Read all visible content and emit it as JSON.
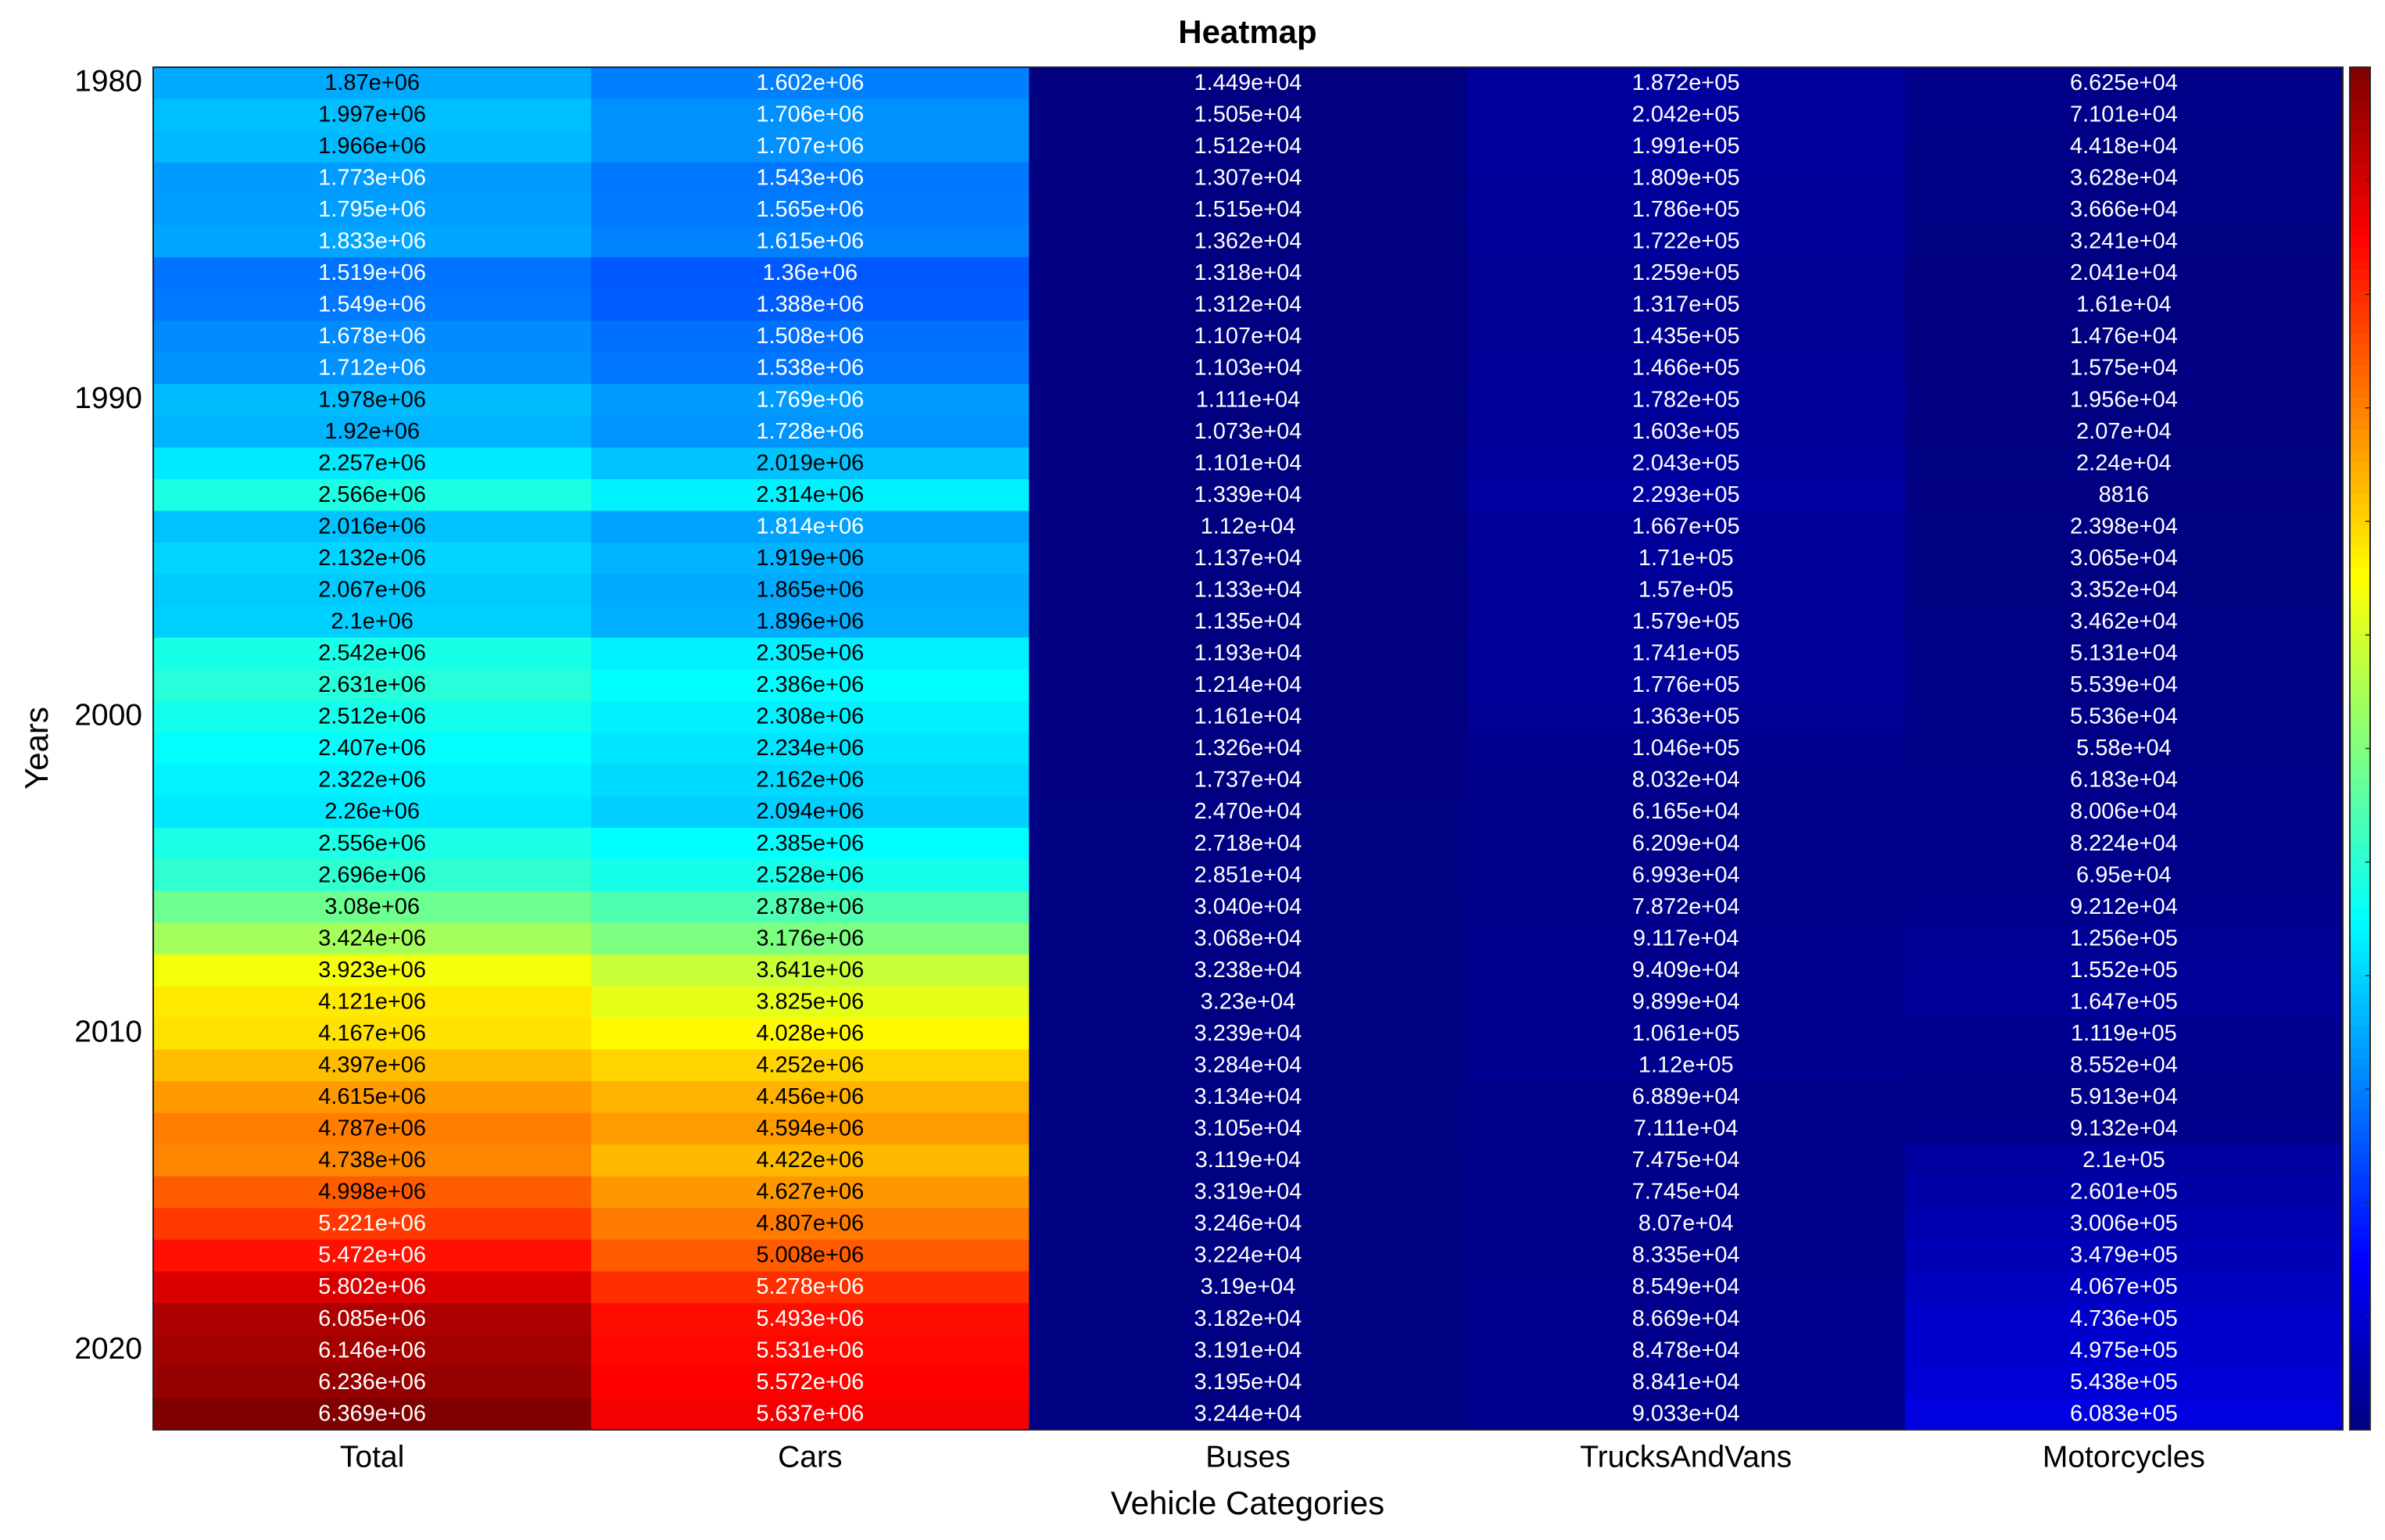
{
  "chart_data": {
    "type": "heatmap",
    "title": "Heatmap",
    "xlabel": "Vehicle Categories",
    "ylabel": "Years",
    "colormap": "jet",
    "x_categories": [
      "Total",
      "Cars",
      "Buses",
      "TrucksAndVans",
      "Motorcycles"
    ],
    "y_categories": [
      1980,
      null,
      null,
      null,
      null,
      null,
      null,
      null,
      null,
      null,
      1990,
      null,
      null,
      null,
      null,
      null,
      null,
      null,
      null,
      null,
      2000,
      null,
      null,
      null,
      null,
      null,
      null,
      null,
      null,
      null,
      2010,
      null,
      null,
      null,
      null,
      null,
      null,
      null,
      null,
      null,
      2020,
      null,
      null
    ],
    "values": [
      [
        1870000.0,
        1602000.0,
        14490.0,
        187200.0,
        66250.0
      ],
      [
        1997000.0,
        1706000.0,
        15050.0,
        204200.0,
        71010.0
      ],
      [
        1966000.0,
        1707000.0,
        15120.0,
        199100.0,
        44180.0
      ],
      [
        1773000.0,
        1543000.0,
        13070.0,
        180900.0,
        36280.0
      ],
      [
        1795000.0,
        1565000.0,
        15150.0,
        178600.0,
        36660.0
      ],
      [
        1833000.0,
        1615000.0,
        13620.0,
        172200.0,
        32410.0
      ],
      [
        1519000.0,
        1360000.0,
        13180.0,
        125900.0,
        20410.0
      ],
      [
        1549000.0,
        1388000.0,
        13120.0,
        131700.0,
        16100.0
      ],
      [
        1678000.0,
        1508000.0,
        11070.0,
        143500.0,
        14760.0
      ],
      [
        1712000.0,
        1538000.0,
        11030.0,
        146600.0,
        15750.0
      ],
      [
        1978000.0,
        1769000.0,
        11110.0,
        178200.0,
        19560.0
      ],
      [
        1920000.0,
        1728000.0,
        10730.0,
        160300.0,
        20700.0
      ],
      [
        2257000.0,
        2019000.0,
        11010.0,
        204300.0,
        22400.0
      ],
      [
        2566000.0,
        2314000.0,
        13390.0,
        229300.0,
        8816
      ],
      [
        2016000.0,
        1814000.0,
        11200.0,
        166700.0,
        23980.0
      ],
      [
        2132000.0,
        1919000.0,
        11370.0,
        171000.0,
        30650.0
      ],
      [
        2067000.0,
        1865000.0,
        11330.0,
        157000.0,
        33520.0
      ],
      [
        2100000.0,
        1896000.0,
        11350.0,
        157900.0,
        34620.0
      ],
      [
        2542000.0,
        2305000.0,
        11930.0,
        174100.0,
        51310.0
      ],
      [
        2631000.0,
        2386000.0,
        12140.0,
        177600.0,
        55390.0
      ],
      [
        2512000.0,
        2308000.0,
        11610.0,
        136300.0,
        55360.0
      ],
      [
        2407000.0,
        2234000.0,
        13260.0,
        104600.0,
        55800.0
      ],
      [
        2322000.0,
        2162000.0,
        17370.0,
        80320.0,
        61830.0
      ],
      [
        2260000.0,
        2094000.0,
        24700.0,
        61650.0,
        80060.0
      ],
      [
        2556000.0,
        2385000.0,
        27180.0,
        62090.0,
        82240.0
      ],
      [
        2696000.0,
        2528000.0,
        28510.0,
        69930.0,
        69500.0
      ],
      [
        3080000.0,
        2878000.0,
        30400.0,
        78720.0,
        92120.0
      ],
      [
        3424000.0,
        3176000.0,
        30680.0,
        91170.0,
        125600.0
      ],
      [
        3923000.0,
        3641000.0,
        32380.0,
        94090.0,
        155200.0
      ],
      [
        4121000.0,
        3825000.0,
        32300.0,
        98990.0,
        164700.0
      ],
      [
        4167000.0,
        4028000.0,
        32390.0,
        106100.0,
        111900.0
      ],
      [
        4397000.0,
        4252000.0,
        32840.0,
        112000.0,
        85520.0
      ],
      [
        4615000.0,
        4456000.0,
        31340.0,
        68890.0,
        59130.0
      ],
      [
        4787000.0,
        4594000.0,
        31050.0,
        71110.0,
        91320.0
      ],
      [
        4738000.0,
        4422000.0,
        31190.0,
        74750.0,
        210000.0
      ],
      [
        4998000.0,
        4627000.0,
        33190.0,
        77450.0,
        260100.0
      ],
      [
        5221000.0,
        4807000.0,
        32460.0,
        80700.0,
        300600.0
      ],
      [
        5472000.0,
        5008000.0,
        32240.0,
        83350.0,
        347900.0
      ],
      [
        5802000.0,
        5278000.0,
        31900.0,
        85490.0,
        406700.0
      ],
      [
        6085000.0,
        5493000.0,
        31820.0,
        86690.0,
        473600.0
      ],
      [
        6146000.0,
        5531000.0,
        31910.0,
        84780.0,
        497500.0
      ],
      [
        6236000.0,
        5572000.0,
        31950.0,
        88410.0,
        543800.0
      ],
      [
        6369000.0,
        5637000.0,
        32440.0,
        90330.0,
        608300.0
      ]
    ],
    "value_labels": [
      [
        "1.87e+06",
        "1.602e+06",
        "1.449e+04",
        "1.872e+05",
        "6.625e+04"
      ],
      [
        "1.997e+06",
        "1.706e+06",
        "1.505e+04",
        "2.042e+05",
        "7.101e+04"
      ],
      [
        "1.966e+06",
        "1.707e+06",
        "1.512e+04",
        "1.991e+05",
        "4.418e+04"
      ],
      [
        "1.773e+06",
        "1.543e+06",
        "1.307e+04",
        "1.809e+05",
        "3.628e+04"
      ],
      [
        "1.795e+06",
        "1.565e+06",
        "1.515e+04",
        "1.786e+05",
        "3.666e+04"
      ],
      [
        "1.833e+06",
        "1.615e+06",
        "1.362e+04",
        "1.722e+05",
        "3.241e+04"
      ],
      [
        "1.519e+06",
        "1.36e+06",
        "1.318e+04",
        "1.259e+05",
        "2.041e+04"
      ],
      [
        "1.549e+06",
        "1.388e+06",
        "1.312e+04",
        "1.317e+05",
        "1.61e+04"
      ],
      [
        "1.678e+06",
        "1.508e+06",
        "1.107e+04",
        "1.435e+05",
        "1.476e+04"
      ],
      [
        "1.712e+06",
        "1.538e+06",
        "1.103e+04",
        "1.466e+05",
        "1.575e+04"
      ],
      [
        "1.978e+06",
        "1.769e+06",
        "1.111e+04",
        "1.782e+05",
        "1.956e+04"
      ],
      [
        "1.92e+06",
        "1.728e+06",
        "1.073e+04",
        "1.603e+05",
        "2.07e+04"
      ],
      [
        "2.257e+06",
        "2.019e+06",
        "1.101e+04",
        "2.043e+05",
        "2.24e+04"
      ],
      [
        "2.566e+06",
        "2.314e+06",
        "1.339e+04",
        "2.293e+05",
        "8816"
      ],
      [
        "2.016e+06",
        "1.814e+06",
        "1.12e+04",
        "1.667e+05",
        "2.398e+04"
      ],
      [
        "2.132e+06",
        "1.919e+06",
        "1.137e+04",
        "1.71e+05",
        "3.065e+04"
      ],
      [
        "2.067e+06",
        "1.865e+06",
        "1.133e+04",
        "1.57e+05",
        "3.352e+04"
      ],
      [
        "2.1e+06",
        "1.896e+06",
        "1.135e+04",
        "1.579e+05",
        "3.462e+04"
      ],
      [
        "2.542e+06",
        "2.305e+06",
        "1.193e+04",
        "1.741e+05",
        "5.131e+04"
      ],
      [
        "2.631e+06",
        "2.386e+06",
        "1.214e+04",
        "1.776e+05",
        "5.539e+04"
      ],
      [
        "2.512e+06",
        "2.308e+06",
        "1.161e+04",
        "1.363e+05",
        "5.536e+04"
      ],
      [
        "2.407e+06",
        "2.234e+06",
        "1.326e+04",
        "1.046e+05",
        "5.58e+04"
      ],
      [
        "2.322e+06",
        "2.162e+06",
        "1.737e+04",
        "8.032e+04",
        "6.183e+04"
      ],
      [
        "2.26e+06",
        "2.094e+06",
        "2.470e+04",
        "6.165e+04",
        "8.006e+04"
      ],
      [
        "2.556e+06",
        "2.385e+06",
        "2.718e+04",
        "6.209e+04",
        "8.224e+04"
      ],
      [
        "2.696e+06",
        "2.528e+06",
        "2.851e+04",
        "6.993e+04",
        "6.95e+04"
      ],
      [
        "3.08e+06",
        "2.878e+06",
        "3.040e+04",
        "7.872e+04",
        "9.212e+04"
      ],
      [
        "3.424e+06",
        "3.176e+06",
        "3.068e+04",
        "9.117e+04",
        "1.256e+05"
      ],
      [
        "3.923e+06",
        "3.641e+06",
        "3.238e+04",
        "9.409e+04",
        "1.552e+05"
      ],
      [
        "4.121e+06",
        "3.825e+06",
        "3.23e+04",
        "9.899e+04",
        "1.647e+05"
      ],
      [
        "4.167e+06",
        "4.028e+06",
        "3.239e+04",
        "1.061e+05",
        "1.119e+05"
      ],
      [
        "4.397e+06",
        "4.252e+06",
        "3.284e+04",
        "1.12e+05",
        "8.552e+04"
      ],
      [
        "4.615e+06",
        "4.456e+06",
        "3.134e+04",
        "6.889e+04",
        "5.913e+04"
      ],
      [
        "4.787e+06",
        "4.594e+06",
        "3.105e+04",
        "7.111e+04",
        "9.132e+04"
      ],
      [
        "4.738e+06",
        "4.422e+06",
        "3.119e+04",
        "7.475e+04",
        "2.1e+05"
      ],
      [
        "4.998e+06",
        "4.627e+06",
        "3.319e+04",
        "7.745e+04",
        "2.601e+05"
      ],
      [
        "5.221e+06",
        "4.807e+06",
        "3.246e+04",
        "8.07e+04",
        "3.006e+05"
      ],
      [
        "5.472e+06",
        "5.008e+06",
        "3.224e+04",
        "8.335e+04",
        "3.479e+05"
      ],
      [
        "5.802e+06",
        "5.278e+06",
        "3.19e+04",
        "8.549e+04",
        "4.067e+05"
      ],
      [
        "6.085e+06",
        "5.493e+06",
        "3.182e+04",
        "8.669e+04",
        "4.736e+05"
      ],
      [
        "6.146e+06",
        "5.531e+06",
        "3.191e+04",
        "8.478e+04",
        "4.975e+05"
      ],
      [
        "6.236e+06",
        "5.572e+06",
        "3.195e+04",
        "8.841e+04",
        "5.438e+05"
      ],
      [
        "6.369e+06",
        "5.637e+06",
        "3.244e+04",
        "9.033e+04",
        "6.083e+05"
      ]
    ]
  }
}
